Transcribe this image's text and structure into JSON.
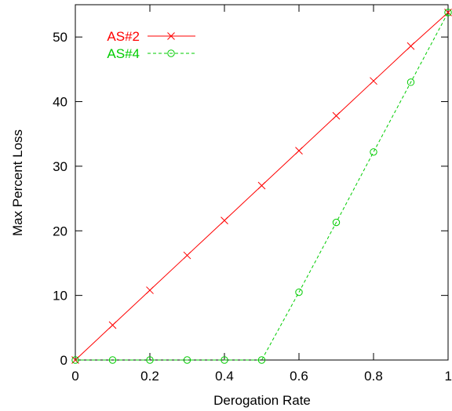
{
  "chart_data": {
    "type": "line",
    "title": "",
    "xlabel": "Derogation Rate",
    "ylabel": "Max Percent Loss",
    "xlim": [
      0,
      1
    ],
    "ylim": [
      0,
      55
    ],
    "x_ticks": [
      0,
      0.2,
      0.4,
      0.6,
      0.8,
      1
    ],
    "x_tick_labels": [
      "0",
      "0.2",
      "0.4",
      "0.6",
      "0.8",
      "1"
    ],
    "y_ticks": [
      0,
      10,
      20,
      30,
      40,
      50
    ],
    "y_tick_labels": [
      "0",
      "10",
      "20",
      "30",
      "40",
      "50"
    ],
    "grid": false,
    "legend_position": "top-left",
    "x": [
      0,
      0.1,
      0.2,
      0.3,
      0.4,
      0.5,
      0.6,
      0.7,
      0.8,
      0.9,
      1.0
    ],
    "series": [
      {
        "name": "AS#2",
        "color": "#ff0000",
        "marker": "x",
        "line_style": "solid",
        "values": [
          0,
          5.4,
          10.8,
          16.2,
          21.6,
          27.0,
          32.4,
          37.8,
          43.2,
          48.6,
          53.8
        ]
      },
      {
        "name": "AS#4",
        "color": "#00cc00",
        "marker": "circle",
        "line_style": "dashed",
        "values": [
          0,
          0,
          0,
          0,
          0,
          0,
          10.5,
          21.3,
          32.2,
          43.0,
          53.8
        ]
      }
    ]
  }
}
